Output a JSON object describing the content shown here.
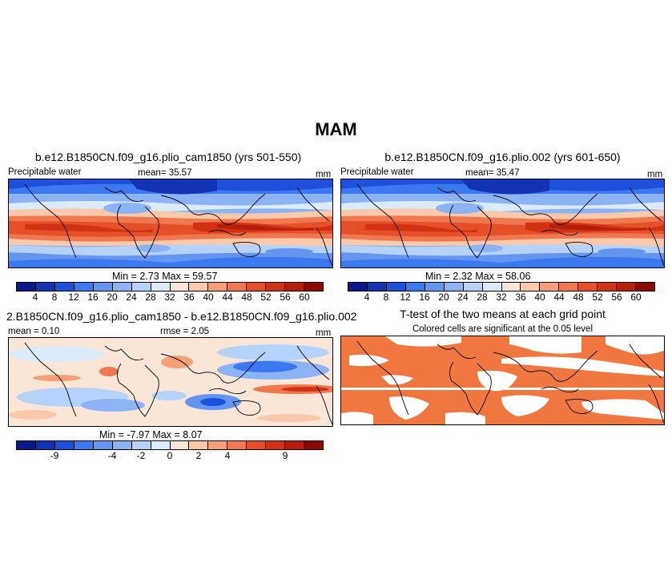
{
  "title": "MAM",
  "panels": {
    "p1": {
      "title": "b.e12.B1850CN.f09_g16.plio_cam1850 (yrs 501-550)",
      "left_label": "Precipitable water",
      "mean_label": "mean=",
      "mean_value": "35.57",
      "units": "mm",
      "min_label": "Min =",
      "min_value": "2.73",
      "max_label": "Max =",
      "max_value": "59.57"
    },
    "p2": {
      "title": "b.e12.B1850CN.f09_g16.plio.002 (yrs 601-650)",
      "left_label": "Precipitable water",
      "mean_label": "mean=",
      "mean_value": "35.47",
      "units": "mm",
      "min_label": "Min =",
      "min_value": "2.32",
      "max_label": "Max =",
      "max_value": "58.06"
    },
    "p3": {
      "title": "2.B1850CN.f09_g16.plio_cam1850 - b.e12.B1850CN.f09_g16.plio.002",
      "mean_label": "mean =",
      "mean_value": "0.10",
      "rmse_label": "rmse =",
      "rmse_value": "2.05",
      "units": "mm",
      "min_label": "Min =",
      "min_value": "-7.97",
      "max_label": "Max =",
      "max_value": "8.07"
    },
    "p4": {
      "title": "T-test of the two means at each grid point",
      "subtitle": "Colored cells are significant at the 0.05 level",
      "fill_color": "#f07840"
    }
  },
  "colorbars": {
    "absolute": {
      "ticks": [
        "4",
        "8",
        "12",
        "16",
        "20",
        "24",
        "28",
        "32",
        "36",
        "40",
        "44",
        "48",
        "52",
        "56",
        "60"
      ],
      "colors": [
        "#0a1a8c",
        "#1432b4",
        "#1e50dc",
        "#3c78f0",
        "#6496f0",
        "#8cb4f5",
        "#b4d2fa",
        "#dcebfa",
        "#fae6d7",
        "#fac8aa",
        "#f5a078",
        "#f07850",
        "#e65028",
        "#d23214",
        "#b41e0a",
        "#8c0a05"
      ]
    },
    "difference": {
      "ticks": [
        "-9",
        "-4",
        "-2",
        "0",
        "2",
        "4",
        "9"
      ],
      "colors": [
        "#0a1a8c",
        "#1432b4",
        "#1e50dc",
        "#3c78f0",
        "#6496f0",
        "#8cb4f5",
        "#b4d2fa",
        "#dcebfa",
        "#fae6d7",
        "#fac8aa",
        "#f5a078",
        "#f07850",
        "#e65028",
        "#d23214",
        "#b41e0a",
        "#8c0a05"
      ]
    }
  }
}
